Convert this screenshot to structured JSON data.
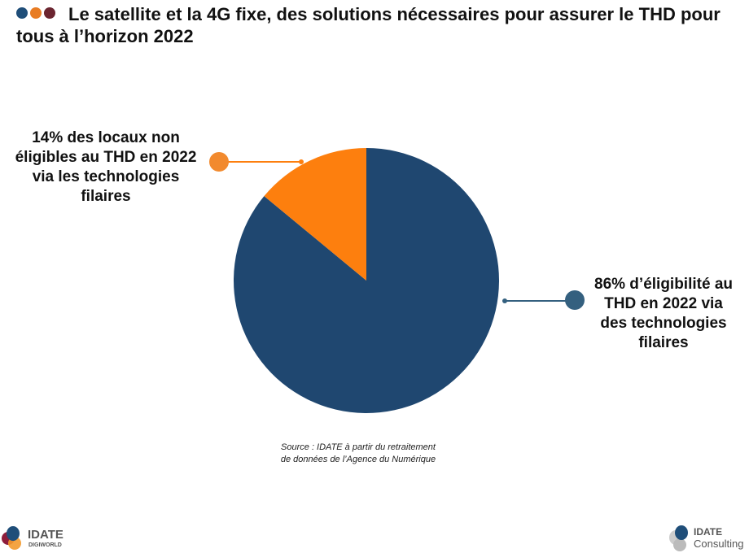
{
  "title": "Le satellite et la 4G fixe, des solutions nécessaires pour assurer le THD pour tous à l’horizon 2022",
  "colors": {
    "dot1": "#1f4e79",
    "dot2": "#e87c23",
    "dot3": "#6b2530"
  },
  "chart_data": {
    "type": "pie",
    "slices": [
      {
        "name": "Non éligibles THD (filaire)",
        "value": 14,
        "color": "#fd7f0e",
        "label": "14% des locaux non éligibles au THD en 2022 via les technologies filaires"
      },
      {
        "name": "Éligibilité THD (filaire)",
        "value": 86,
        "color": "#1f4770",
        "label": "86% d’éligibilité au THD en 2022 via des technologies filaires"
      }
    ]
  },
  "labels": {
    "left": "14% des locaux non éligibles au THD en 2022 via les technologies filaires",
    "right": "86% d’éligibilité au THD en 2022 via des technologies filaires"
  },
  "source": "Source : IDATE à partir du retraitement de  données de l’Agence du Numérique",
  "logos": {
    "left_main": "IDATE",
    "left_sub": "DIGIWORLD",
    "right_main": "IDATE",
    "right_sub": "Consulting"
  }
}
